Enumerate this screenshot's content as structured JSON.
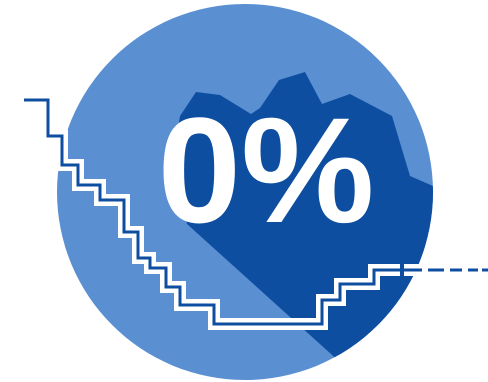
{
  "badge": {
    "text": "0%",
    "colors": {
      "circle": "#5a8fd2",
      "shadow": "#0e4ea0",
      "text": "#ffffff",
      "line_outline": "#ffffff",
      "line_stroke": "#0e4ea0"
    }
  },
  "icons": {
    "descending_steps": "stepped-line-icon"
  }
}
